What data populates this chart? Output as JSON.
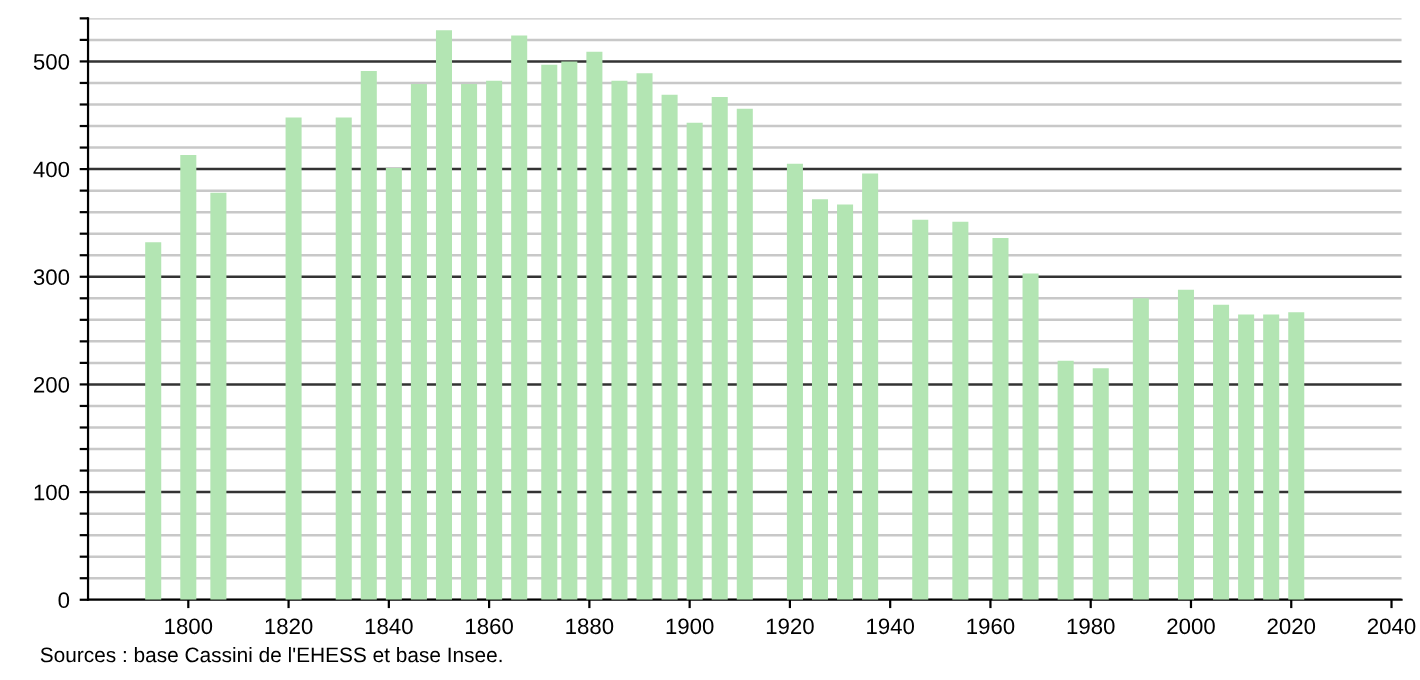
{
  "chart_data": {
    "type": "bar",
    "color": "#b3e5b3",
    "x": [
      1793,
      1800,
      1806,
      1821,
      1831,
      1836,
      1841,
      1846,
      1851,
      1856,
      1861,
      1866,
      1872,
      1876,
      1881,
      1886,
      1891,
      1896,
      1901,
      1906,
      1911,
      1921,
      1926,
      1931,
      1936,
      1946,
      1954,
      1962,
      1968,
      1975,
      1982,
      1990,
      1999,
      2006,
      2011,
      2016,
      2021
    ],
    "values": [
      332,
      413,
      378,
      448,
      448,
      491,
      401,
      479,
      529,
      479,
      482,
      524,
      497,
      500,
      509,
      482,
      489,
      469,
      443,
      467,
      456,
      405,
      372,
      367,
      396,
      353,
      351,
      336,
      303,
      222,
      215,
      280,
      288,
      274,
      265,
      265,
      267
    ],
    "xlim": [
      1780,
      2042
    ],
    "ylim": [
      0,
      540
    ],
    "xticks": [
      1800,
      1820,
      1840,
      1860,
      1880,
      1900,
      1920,
      1940,
      1960,
      1980,
      2000,
      2020,
      2040
    ],
    "yticks": [
      0,
      {
        "value": 20,
        "label": null
      },
      {
        "value": 40,
        "label": null
      },
      {
        "value": 60,
        "label": null
      },
      {
        "value": 80,
        "label": null
      },
      100,
      {
        "value": 120,
        "label": null
      },
      {
        "value": 140,
        "label": null
      },
      {
        "value": 160,
        "label": null
      },
      {
        "value": 180,
        "label": null
      },
      200,
      {
        "value": 220,
        "label": null
      },
      {
        "value": 240,
        "label": null
      },
      {
        "value": 260,
        "label": null
      },
      {
        "value": 280,
        "label": null
      },
      300,
      {
        "value": 320,
        "label": null
      },
      {
        "value": 340,
        "label": null
      },
      {
        "value": 360,
        "label": null
      },
      {
        "value": 380,
        "label": null
      },
      400,
      {
        "value": 420,
        "label": null
      },
      {
        "value": 440,
        "label": null
      },
      {
        "value": 460,
        "label": null
      },
      {
        "value": 480,
        "label": null
      },
      500,
      {
        "value": 520,
        "label": null
      },
      {
        "value": 540,
        "label": null
      }
    ],
    "grid": "y",
    "annotations": [
      "Sources : base Cassini de l'EHESS et base Insee."
    ]
  }
}
